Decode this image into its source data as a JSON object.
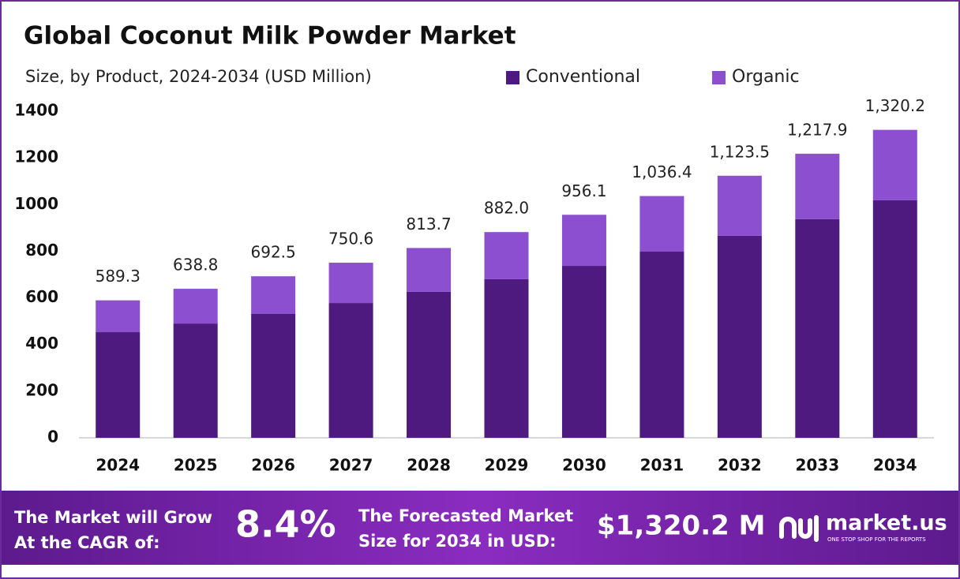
{
  "chart_data": {
    "type": "stacked_bar",
    "title": "Global Coconut Milk Powder Market",
    "subtitle": "Size, by Product, 2024-2034 (USD Million)",
    "categories": [
      "2024",
      "2025",
      "2026",
      "2027",
      "2028",
      "2029",
      "2030",
      "2031",
      "2032",
      "2033",
      "2034"
    ],
    "series": [
      {
        "name": "Conventional",
        "color": "#4e1a7f",
        "values": [
          453,
          490,
          531,
          578,
          626,
          680,
          737,
          798,
          866,
          937,
          1018
        ]
      },
      {
        "name": "Organic",
        "color": "#8c4fcf",
        "values": [
          136.3,
          148.8,
          161.5,
          172.6,
          187.7,
          202.0,
          219.1,
          238.4,
          257.5,
          280.9,
          302.2
        ]
      }
    ],
    "totals": {
      "values": [
        589.3,
        638.8,
        692.5,
        750.6,
        813.7,
        882.0,
        956.1,
        1036.4,
        1123.5,
        1217.9,
        1320.2
      ],
      "value_labels": [
        "589.3",
        "638.8",
        "692.5",
        "750.6",
        "813.7",
        "882.0",
        "956.1",
        "1,036.4",
        "1,123.5",
        "1,217.9",
        "1,320.2"
      ]
    },
    "ylim": [
      0,
      1400
    ],
    "yticks": [
      0,
      200,
      400,
      600,
      800,
      1000,
      1200,
      1400
    ],
    "grid": false
  },
  "footer": {
    "cagr_text": [
      "The Market will Grow",
      "At the CAGR of:"
    ],
    "cagr_value": "8.4%",
    "forecast_text": [
      "The Forecasted Market",
      "Size for 2034 in USD:"
    ],
    "forecast_value": "$1,320.2 M",
    "brand": "market.us",
    "tagline": "ONE STOP SHOP FOR THE REPORTS"
  }
}
